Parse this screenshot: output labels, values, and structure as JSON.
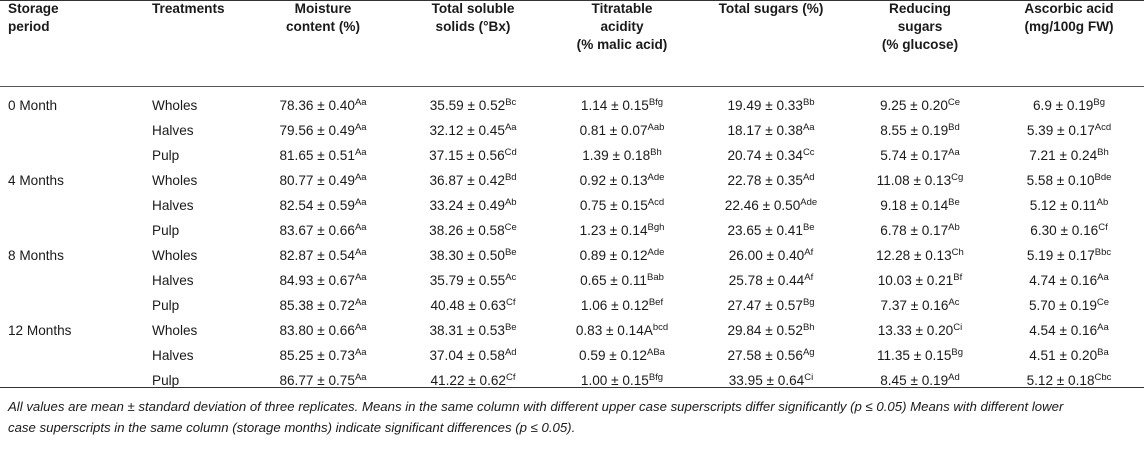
{
  "table": {
    "headers": [
      {
        "lines": [
          "Storage",
          "period"
        ]
      },
      {
        "lines": [
          "Treatments"
        ]
      },
      {
        "lines": [
          "Moisture",
          "content (%)"
        ]
      },
      {
        "lines": [
          "Total soluble",
          "solids (°Bx)"
        ]
      },
      {
        "lines": [
          "Titratable",
          "acidity",
          "(% malic acid)"
        ]
      },
      {
        "lines": [
          "Total sugars (%)"
        ]
      },
      {
        "lines": [
          "Reducing",
          "sugars",
          "(% glucose)"
        ]
      },
      {
        "lines": [
          "Ascorbic acid",
          "(mg/100g FW)"
        ]
      }
    ],
    "rows": [
      {
        "period": "0 Month",
        "treatment": "Wholes",
        "cells": [
          {
            "v": "78.36 ± 0.40",
            "s": "Aa"
          },
          {
            "v": "35.59 ± 0.52",
            "s": "Bc"
          },
          {
            "v": "1.14 ± 0.15",
            "s": "Bfg"
          },
          {
            "v": "19.49 ± 0.33",
            "s": "Bb"
          },
          {
            "v": "9.25 ± 0.20",
            "s": "Ce"
          },
          {
            "v": "6.9 ± 0.19",
            "s": "Bg"
          }
        ]
      },
      {
        "period": "",
        "treatment": "Halves",
        "cells": [
          {
            "v": "79.56 ± 0.49",
            "s": "Aa"
          },
          {
            "v": "32.12 ± 0.45",
            "s": "Aa"
          },
          {
            "v": "0.81 ± 0.07",
            "s": "Aab"
          },
          {
            "v": "18.17 ± 0.38",
            "s": "Aa"
          },
          {
            "v": "8.55 ± 0.19",
            "s": "Bd"
          },
          {
            "v": "5.39 ± 0.17",
            "s": "Acd"
          }
        ]
      },
      {
        "period": "",
        "treatment": "Pulp",
        "cells": [
          {
            "v": "81.65 ± 0.51",
            "s": "Aa"
          },
          {
            "v": "37.15 ± 0.56",
            "s": "Cd"
          },
          {
            "v": "1.39 ± 0.18",
            "s": "Bh"
          },
          {
            "v": "20.74 ± 0.34",
            "s": "Cc"
          },
          {
            "v": "5.74 ± 0.17",
            "s": "Aa"
          },
          {
            "v": "7.21 ± 0.24",
            "s": "Bh"
          }
        ]
      },
      {
        "period": "4 Months",
        "treatment": "Wholes",
        "cells": [
          {
            "v": "80.77 ± 0.49",
            "s": "Aa"
          },
          {
            "v": "36.87 ± 0.42",
            "s": "Bd"
          },
          {
            "v": "0.92 ± 0.13",
            "s": "Ade"
          },
          {
            "v": "22.78 ± 0.35",
            "s": "Ad"
          },
          {
            "v": "11.08 ± 0.13",
            "s": "Cg"
          },
          {
            "v": "5.58 ± 0.10",
            "s": "Bde"
          }
        ]
      },
      {
        "period": "",
        "treatment": "Halves",
        "cells": [
          {
            "v": "82.54 ± 0.59",
            "s": "Aa"
          },
          {
            "v": "33.24 ± 0.49",
            "s": "Ab"
          },
          {
            "v": "0.75 ± 0.15",
            "s": "Acd"
          },
          {
            "v": "22.46 ± 0.50",
            "s": "Ade"
          },
          {
            "v": "9.18 ± 0.14",
            "s": "Be"
          },
          {
            "v": "5.12 ± 0.11",
            "s": "Ab"
          }
        ]
      },
      {
        "period": "",
        "treatment": "Pulp",
        "cells": [
          {
            "v": "83.67 ± 0.66",
            "s": "Aa"
          },
          {
            "v": "38.26 ± 0.58",
            "s": "Ce"
          },
          {
            "v": "1.23 ± 0.14",
            "s": "Bgh"
          },
          {
            "v": "23.65 ± 0.41",
            "s": "Be"
          },
          {
            "v": "6.78 ± 0.17",
            "s": "Ab"
          },
          {
            "v": "6.30 ± 0.16",
            "s": "Cf"
          }
        ]
      },
      {
        "period": "8 Months",
        "treatment": "Wholes",
        "cells": [
          {
            "v": "82.87 ± 0.54",
            "s": "Aa"
          },
          {
            "v": "38.30 ± 0.50",
            "s": "Be"
          },
          {
            "v": "0.89 ± 0.12",
            "s": "Ade"
          },
          {
            "v": "26.00 ± 0.40",
            "s": "Af"
          },
          {
            "v": "12.28 ± 0.13",
            "s": "Ch"
          },
          {
            "v": "5.19 ± 0.17",
            "s": "Bbc"
          }
        ]
      },
      {
        "period": "",
        "treatment": "Halves",
        "cells": [
          {
            "v": "84.93 ± 0.67",
            "s": "Aa"
          },
          {
            "v": "35.79 ± 0.55",
            "s": "Ac"
          },
          {
            "v": "0.65 ± 0.11",
            "s": "Bab"
          },
          {
            "v": "25.78 ± 0.44",
            "s": "Af"
          },
          {
            "v": "10.03 ± 0.21",
            "s": "Bf"
          },
          {
            "v": "4.74 ± 0.16",
            "s": "Aa"
          }
        ]
      },
      {
        "period": "",
        "treatment": "Pulp",
        "cells": [
          {
            "v": "85.38 ± 0.72",
            "s": "Aa"
          },
          {
            "v": "40.48 ± 0.63",
            "s": "Cf"
          },
          {
            "v": "1.06 ± 0.12",
            "s": "Bef"
          },
          {
            "v": "27.47 ± 0.57",
            "s": "Bg"
          },
          {
            "v": "7.37 ± 0.16",
            "s": "Ac"
          },
          {
            "v": "5.70 ± 0.19",
            "s": "Ce"
          }
        ]
      },
      {
        "period": "12 Months",
        "treatment": "Wholes",
        "cells": [
          {
            "v": "83.80 ± 0.66",
            "s": "Aa"
          },
          {
            "v": "38.31 ± 0.53",
            "s": "Be"
          },
          {
            "v": "0.83 ± 0.14A",
            "s": "bcd"
          },
          {
            "v": "29.84 ± 0.52",
            "s": "Bh"
          },
          {
            "v": "13.33 ± 0.20",
            "s": "Ci"
          },
          {
            "v": "4.54 ± 0.16",
            "s": "Aa"
          }
        ]
      },
      {
        "period": "",
        "treatment": "Halves",
        "cells": [
          {
            "v": "85.25 ± 0.73",
            "s": "Aa"
          },
          {
            "v": "37.04 ± 0.58",
            "s": "Ad"
          },
          {
            "v": "0.59 ± 0.12",
            "s": "ABa"
          },
          {
            "v": "27.58 ± 0.56",
            "s": "Ag"
          },
          {
            "v": "11.35 ± 0.15",
            "s": "Bg"
          },
          {
            "v": "4.51 ± 0.20",
            "s": "Ba"
          }
        ]
      },
      {
        "period": "",
        "treatment": "Pulp",
        "cells": [
          {
            "v": "86.77 ± 0.75",
            "s": "Aa"
          },
          {
            "v": "41.22 ± 0.62",
            "s": "Cf"
          },
          {
            "v": "1.00 ± 0.15",
            "s": "Bfg"
          },
          {
            "v": "33.95 ± 0.64",
            "s": "Ci"
          },
          {
            "v": "8.45 ± 0.19",
            "s": "Ad"
          },
          {
            "v": "5.12 ± 0.18",
            "s": "Cbc"
          }
        ]
      }
    ]
  },
  "footnote": {
    "line1": "All values are mean ± standard deviation of three replicates. Means in the same column with different upper case superscripts differ significantly (p ≤ 0.05) Means with different lower",
    "line2": "case superscripts in the same column (storage months) indicate significant differences (p ≤ 0.05)."
  },
  "colors": {
    "text": "#1a1a1a",
    "rule": "#333333",
    "background": "#ffffff"
  }
}
